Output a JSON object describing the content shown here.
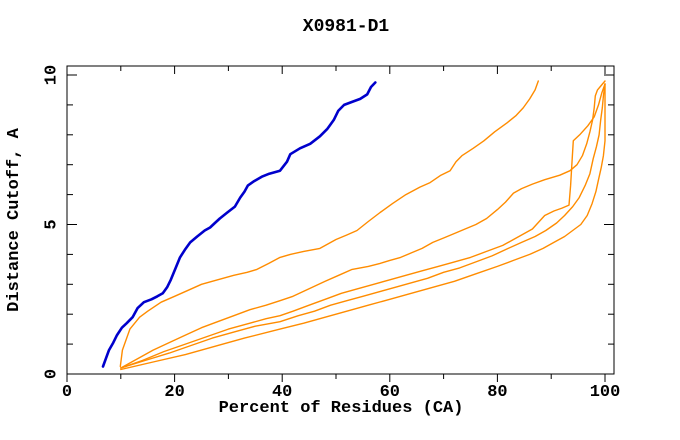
{
  "window": {
    "background": "#ffffff"
  },
  "chart_data": {
    "type": "line",
    "title": "X0981-D1",
    "xlabel": "Percent of Residues (CA)",
    "ylabel": "Distance Cutoff, A",
    "xlim": [
      0,
      100
    ],
    "ylim": [
      0,
      10
    ],
    "x_major_ticks": [
      0,
      20,
      40,
      60,
      80,
      100
    ],
    "x_minor_step": 10,
    "y_major_ticks": [
      0,
      5,
      10
    ],
    "y_minor_step": 1,
    "grid": false,
    "legend_position": "none",
    "frame": "box-with-inward-ticks",
    "colors": {
      "highlight": "#0000cc",
      "other_models": "#ff8c00",
      "axis": "#000000"
    },
    "series": [
      {
        "name": "highlighted-model-blue",
        "color": "#0000cc",
        "width": 2.6,
        "points": [
          [
            6.7,
            0.25
          ],
          [
            7.2,
            0.5
          ],
          [
            7.8,
            0.8
          ],
          [
            8.6,
            1.05
          ],
          [
            9.3,
            1.3
          ],
          [
            10.2,
            1.55
          ],
          [
            11.1,
            1.7
          ],
          [
            12.2,
            1.9
          ],
          [
            13.1,
            2.2
          ],
          [
            14.3,
            2.4
          ],
          [
            15.7,
            2.5
          ],
          [
            16.8,
            2.6
          ],
          [
            17.8,
            2.7
          ],
          [
            18.6,
            2.9
          ],
          [
            19.3,
            3.15
          ],
          [
            20.2,
            3.55
          ],
          [
            21.0,
            3.9
          ],
          [
            21.9,
            4.15
          ],
          [
            22.9,
            4.4
          ],
          [
            24.2,
            4.6
          ],
          [
            25.6,
            4.8
          ],
          [
            26.6,
            4.9
          ],
          [
            27.5,
            5.05
          ],
          [
            28.4,
            5.2
          ],
          [
            29.8,
            5.4
          ],
          [
            31.2,
            5.6
          ],
          [
            32.2,
            5.9
          ],
          [
            33.0,
            6.1
          ],
          [
            33.6,
            6.3
          ],
          [
            34.8,
            6.45
          ],
          [
            36.2,
            6.6
          ],
          [
            37.6,
            6.7
          ],
          [
            39.6,
            6.8
          ],
          [
            40.9,
            7.1
          ],
          [
            41.5,
            7.35
          ],
          [
            43.3,
            7.55
          ],
          [
            45.2,
            7.7
          ],
          [
            47.0,
            7.95
          ],
          [
            48.4,
            8.2
          ],
          [
            49.6,
            8.5
          ],
          [
            50.4,
            8.8
          ],
          [
            51.5,
            9.0
          ],
          [
            53.0,
            9.1
          ],
          [
            54.5,
            9.2
          ],
          [
            55.8,
            9.35
          ],
          [
            56.5,
            9.6
          ],
          [
            57.3,
            9.75
          ]
        ]
      },
      {
        "name": "model-2-orange",
        "color": "#ff8c00",
        "width": 1.4,
        "points": [
          [
            9.9,
            0.25
          ],
          [
            10.3,
            0.8
          ],
          [
            11.7,
            1.5
          ],
          [
            13.5,
            1.9
          ],
          [
            15.0,
            2.1
          ],
          [
            17.5,
            2.4
          ],
          [
            20.0,
            2.6
          ],
          [
            22.5,
            2.8
          ],
          [
            25.0,
            3.0
          ],
          [
            28.0,
            3.15
          ],
          [
            31.0,
            3.3
          ],
          [
            33.5,
            3.4
          ],
          [
            35.3,
            3.5
          ],
          [
            37.5,
            3.7
          ],
          [
            39.6,
            3.9
          ],
          [
            41.5,
            4.0
          ],
          [
            44.0,
            4.1
          ],
          [
            47.0,
            4.2
          ],
          [
            50.0,
            4.5
          ],
          [
            52.0,
            4.65
          ],
          [
            53.9,
            4.8
          ],
          [
            56.0,
            5.1
          ],
          [
            58.2,
            5.4
          ],
          [
            60.5,
            5.7
          ],
          [
            63.0,
            6.0
          ],
          [
            65.6,
            6.25
          ],
          [
            67.5,
            6.4
          ],
          [
            69.5,
            6.65
          ],
          [
            71.2,
            6.8
          ],
          [
            72.3,
            7.1
          ],
          [
            73.4,
            7.3
          ],
          [
            75.5,
            7.55
          ],
          [
            77.5,
            7.8
          ],
          [
            79.5,
            8.1
          ],
          [
            81.8,
            8.4
          ],
          [
            83.5,
            8.65
          ],
          [
            84.8,
            8.9
          ],
          [
            86.0,
            9.2
          ],
          [
            87.0,
            9.5
          ],
          [
            87.6,
            9.8
          ]
        ]
      },
      {
        "name": "model-3-orange",
        "color": "#ff8c00",
        "width": 1.4,
        "points": [
          [
            10.0,
            0.2
          ],
          [
            13.0,
            0.5
          ],
          [
            16.0,
            0.8
          ],
          [
            19.0,
            1.05
          ],
          [
            22.0,
            1.3
          ],
          [
            25.0,
            1.55
          ],
          [
            28.0,
            1.75
          ],
          [
            31.0,
            1.95
          ],
          [
            34.0,
            2.15
          ],
          [
            37.0,
            2.3
          ],
          [
            39.6,
            2.45
          ],
          [
            42.0,
            2.6
          ],
          [
            45.0,
            2.85
          ],
          [
            48.0,
            3.1
          ],
          [
            50.5,
            3.3
          ],
          [
            53.0,
            3.5
          ],
          [
            56.0,
            3.6
          ],
          [
            58.2,
            3.7
          ],
          [
            60.0,
            3.8
          ],
          [
            62.0,
            3.9
          ],
          [
            64.0,
            4.05
          ],
          [
            66.0,
            4.2
          ],
          [
            68.0,
            4.4
          ],
          [
            70.0,
            4.55
          ],
          [
            72.0,
            4.7
          ],
          [
            74.0,
            4.85
          ],
          [
            76.0,
            5.0
          ],
          [
            78.0,
            5.2
          ],
          [
            80.0,
            5.5
          ],
          [
            81.5,
            5.75
          ],
          [
            83.0,
            6.05
          ],
          [
            84.5,
            6.2
          ],
          [
            86.5,
            6.35
          ],
          [
            88.8,
            6.5
          ],
          [
            91.6,
            6.65
          ],
          [
            93.5,
            6.8
          ],
          [
            94.8,
            7.0
          ],
          [
            95.8,
            7.3
          ],
          [
            96.6,
            7.7
          ],
          [
            97.2,
            8.1
          ],
          [
            97.7,
            8.5
          ],
          [
            98.0,
            8.9
          ],
          [
            98.2,
            9.3
          ],
          [
            98.6,
            9.5
          ],
          [
            99.3,
            9.65
          ],
          [
            100,
            9.8
          ]
        ]
      },
      {
        "name": "model-4-orange",
        "color": "#ff8c00",
        "width": 1.4,
        "points": [
          [
            10.0,
            0.2
          ],
          [
            14.0,
            0.45
          ],
          [
            18.0,
            0.75
          ],
          [
            22.0,
            1.0
          ],
          [
            26.0,
            1.25
          ],
          [
            30.0,
            1.5
          ],
          [
            34.0,
            1.7
          ],
          [
            37.0,
            1.85
          ],
          [
            39.6,
            1.95
          ],
          [
            42.0,
            2.1
          ],
          [
            45.0,
            2.3
          ],
          [
            48.0,
            2.5
          ],
          [
            51.0,
            2.7
          ],
          [
            54.0,
            2.85
          ],
          [
            57.0,
            3.0
          ],
          [
            60.0,
            3.15
          ],
          [
            63.0,
            3.3
          ],
          [
            66.0,
            3.45
          ],
          [
            69.0,
            3.6
          ],
          [
            72.0,
            3.75
          ],
          [
            75.0,
            3.9
          ],
          [
            78.0,
            4.1
          ],
          [
            81.0,
            4.3
          ],
          [
            84.0,
            4.6
          ],
          [
            86.5,
            4.85
          ],
          [
            88.8,
            5.3
          ],
          [
            90.5,
            5.45
          ],
          [
            92.0,
            5.55
          ],
          [
            93.3,
            5.65
          ],
          [
            93.6,
            6.3
          ],
          [
            93.9,
            7.2
          ],
          [
            94.1,
            7.8
          ],
          [
            95.3,
            8.0
          ],
          [
            96.8,
            8.3
          ],
          [
            98.0,
            8.6
          ],
          [
            98.8,
            9.0
          ],
          [
            99.4,
            9.4
          ],
          [
            100,
            9.7
          ]
        ]
      },
      {
        "name": "model-5-orange",
        "color": "#ff8c00",
        "width": 1.4,
        "points": [
          [
            10.0,
            0.2
          ],
          [
            14.5,
            0.45
          ],
          [
            19.0,
            0.7
          ],
          [
            23.0,
            0.95
          ],
          [
            27.0,
            1.2
          ],
          [
            31.0,
            1.4
          ],
          [
            35.0,
            1.6
          ],
          [
            39.6,
            1.75
          ],
          [
            43.0,
            1.95
          ],
          [
            46.0,
            2.1
          ],
          [
            49.0,
            2.3
          ],
          [
            52.0,
            2.45
          ],
          [
            55.0,
            2.6
          ],
          [
            58.0,
            2.75
          ],
          [
            61.0,
            2.9
          ],
          [
            64.0,
            3.05
          ],
          [
            67.0,
            3.2
          ],
          [
            70.0,
            3.4
          ],
          [
            73.0,
            3.55
          ],
          [
            76.0,
            3.75
          ],
          [
            79.0,
            3.95
          ],
          [
            82.0,
            4.2
          ],
          [
            84.5,
            4.4
          ],
          [
            87.0,
            4.6
          ],
          [
            89.0,
            4.8
          ],
          [
            91.0,
            5.05
          ],
          [
            92.5,
            5.3
          ],
          [
            94.0,
            5.6
          ],
          [
            95.2,
            5.9
          ],
          [
            96.3,
            6.3
          ],
          [
            97.2,
            6.7
          ],
          [
            97.8,
            7.2
          ],
          [
            98.4,
            7.6
          ],
          [
            98.9,
            8.0
          ],
          [
            99.2,
            8.5
          ],
          [
            99.5,
            8.9
          ],
          [
            99.7,
            9.3
          ],
          [
            100,
            9.7
          ]
        ]
      },
      {
        "name": "model-6-orange",
        "color": "#ff8c00",
        "width": 1.4,
        "points": [
          [
            10.0,
            0.15
          ],
          [
            16.0,
            0.4
          ],
          [
            22.0,
            0.65
          ],
          [
            28.0,
            0.95
          ],
          [
            33.0,
            1.2
          ],
          [
            39.6,
            1.5
          ],
          [
            44.0,
            1.7
          ],
          [
            48.0,
            1.9
          ],
          [
            52.0,
            2.1
          ],
          [
            56.0,
            2.3
          ],
          [
            60.0,
            2.5
          ],
          [
            64.0,
            2.7
          ],
          [
            68.0,
            2.9
          ],
          [
            72.0,
            3.1
          ],
          [
            76.0,
            3.35
          ],
          [
            80.0,
            3.6
          ],
          [
            83.0,
            3.8
          ],
          [
            86.0,
            4.0
          ],
          [
            88.5,
            4.2
          ],
          [
            90.5,
            4.4
          ],
          [
            92.5,
            4.6
          ],
          [
            94.0,
            4.8
          ],
          [
            95.5,
            5.0
          ],
          [
            96.7,
            5.3
          ],
          [
            97.6,
            5.7
          ],
          [
            98.3,
            6.1
          ],
          [
            98.8,
            6.5
          ],
          [
            99.3,
            6.9
          ],
          [
            99.7,
            7.3
          ],
          [
            100,
            7.8
          ],
          [
            100,
            9.7
          ]
        ]
      }
    ]
  }
}
